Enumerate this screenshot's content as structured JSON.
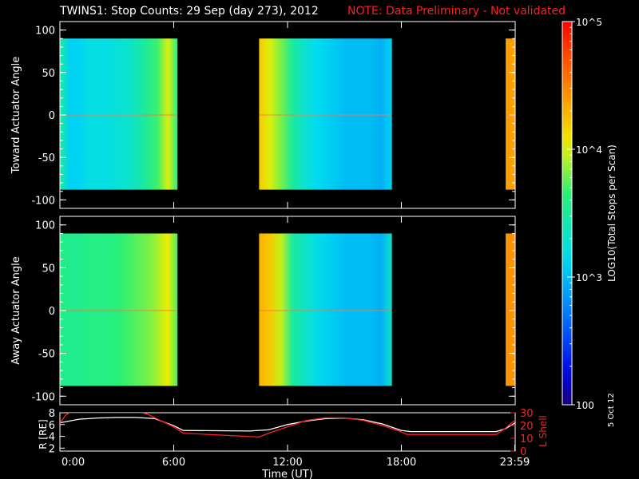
{
  "title": {
    "main": "TWINS1: Stop Counts: 29 Sep (day 273), 2012",
    "note": "NOTE: Data Preliminary - Not validated"
  },
  "stamp": "5 Oct 12",
  "colors": {
    "background": "#000000",
    "axes": "#ffffff",
    "note": "#ff2020",
    "lshell_line": "#ff2020",
    "r_line": "#ffffff"
  },
  "chart_data": [
    {
      "type": "heatmap",
      "name": "toward",
      "ylabel": "Toward Actuator Angle",
      "xlim": [
        0,
        24
      ],
      "ylim": [
        -110,
        110
      ],
      "yticks": [
        "100",
        "50",
        "0",
        "-50",
        "-100"
      ],
      "data_yrange": [
        -88,
        90
      ],
      "segments": [
        {
          "x": [
            0.0,
            6.2
          ],
          "profile": [
            3.5,
            3.1,
            3.1,
            3.2,
            3.2,
            3.2,
            3.25,
            3.3,
            3.4,
            3.55,
            3.7,
            4.0,
            3.6
          ]
        },
        {
          "x": [
            10.5,
            17.5
          ],
          "profile": [
            4.2,
            4.0,
            3.8,
            3.5,
            3.3,
            3.15,
            3.1,
            3.05,
            3.0,
            3.0,
            3.0,
            2.95,
            3.1
          ]
        },
        {
          "x": [
            23.5,
            24.0
          ],
          "profile": [
            4.35,
            4.4,
            4.35
          ]
        }
      ]
    },
    {
      "type": "heatmap",
      "name": "away",
      "ylabel": "Away Actuator Angle",
      "xlim": [
        0,
        24
      ],
      "ylim": [
        -110,
        110
      ],
      "yticks": [
        "100",
        "50",
        "0",
        "-50",
        "-100"
      ],
      "data_yrange": [
        -88,
        90
      ],
      "segments": [
        {
          "x": [
            0.0,
            6.2
          ],
          "profile": [
            3.6,
            3.55,
            3.55,
            3.6,
            3.6,
            3.6,
            3.65,
            3.7,
            3.75,
            3.8,
            3.9,
            4.05,
            3.7
          ]
        },
        {
          "x": [
            10.5,
            17.5
          ],
          "profile": [
            4.3,
            4.2,
            3.95,
            3.5,
            3.35,
            3.2,
            3.1,
            3.05,
            3.0,
            3.0,
            3.0,
            2.95,
            3.3
          ]
        },
        {
          "x": [
            23.5,
            24.0
          ],
          "profile": [
            4.4,
            4.45,
            4.4
          ]
        }
      ]
    },
    {
      "type": "line",
      "name": "orbit",
      "ylabel_left": "R [RE]",
      "ylabel_right": "L Shell",
      "xlabel": "Time (UT)",
      "xlim": [
        0,
        24
      ],
      "ylim_left": [
        1.5,
        8
      ],
      "ylim_right": [
        0,
        30
      ],
      "yticks_left": [
        "8",
        "6",
        "4",
        "2"
      ],
      "yticks_right": [
        "30",
        "20",
        "10",
        "0"
      ],
      "xticks": [
        "0:00",
        "6:00",
        "12:00",
        "18:00",
        "23:59"
      ],
      "xtick_values": [
        0,
        6,
        12,
        18,
        23.98
      ],
      "series": [
        {
          "axis": "left",
          "x": [
            0,
            1,
            2,
            3,
            4,
            5,
            6,
            6.5,
            10,
            11,
            12,
            13,
            14,
            15,
            16,
            17,
            18,
            18.5,
            23,
            23.5,
            24
          ],
          "y": [
            6.3,
            6.9,
            7.1,
            7.2,
            7.2,
            7.0,
            5.8,
            5.0,
            4.9,
            5.1,
            6.0,
            6.6,
            7.0,
            7.1,
            6.8,
            6.1,
            5.0,
            4.8,
            4.8,
            5.3,
            6.3
          ]
        },
        {
          "axis": "right",
          "x": [
            0,
            0.3,
            0.5,
            4.3,
            4.6,
            5,
            6,
            6.5,
            10.5,
            11,
            12,
            13,
            14,
            15,
            16,
            17,
            18,
            18.3,
            23,
            23.5,
            23.8,
            24
          ],
          "y": [
            22,
            28,
            30,
            30,
            29,
            26,
            19,
            14,
            11,
            14,
            19,
            24,
            26,
            26,
            24,
            20,
            15,
            13,
            13,
            18,
            22,
            24
          ]
        }
      ]
    },
    {
      "type": "heatmap",
      "name": "colorbar",
      "ylabel": "LOG10(Total Stops per Scan)",
      "scale": "log",
      "ylim": [
        100,
        100000
      ],
      "ticks": [
        {
          "value": 100000,
          "label": "10^5"
        },
        {
          "value": 10000,
          "label": "10^4"
        },
        {
          "value": 1000,
          "label": "10^3"
        },
        {
          "value": 100,
          "label": "100"
        }
      ]
    }
  ]
}
